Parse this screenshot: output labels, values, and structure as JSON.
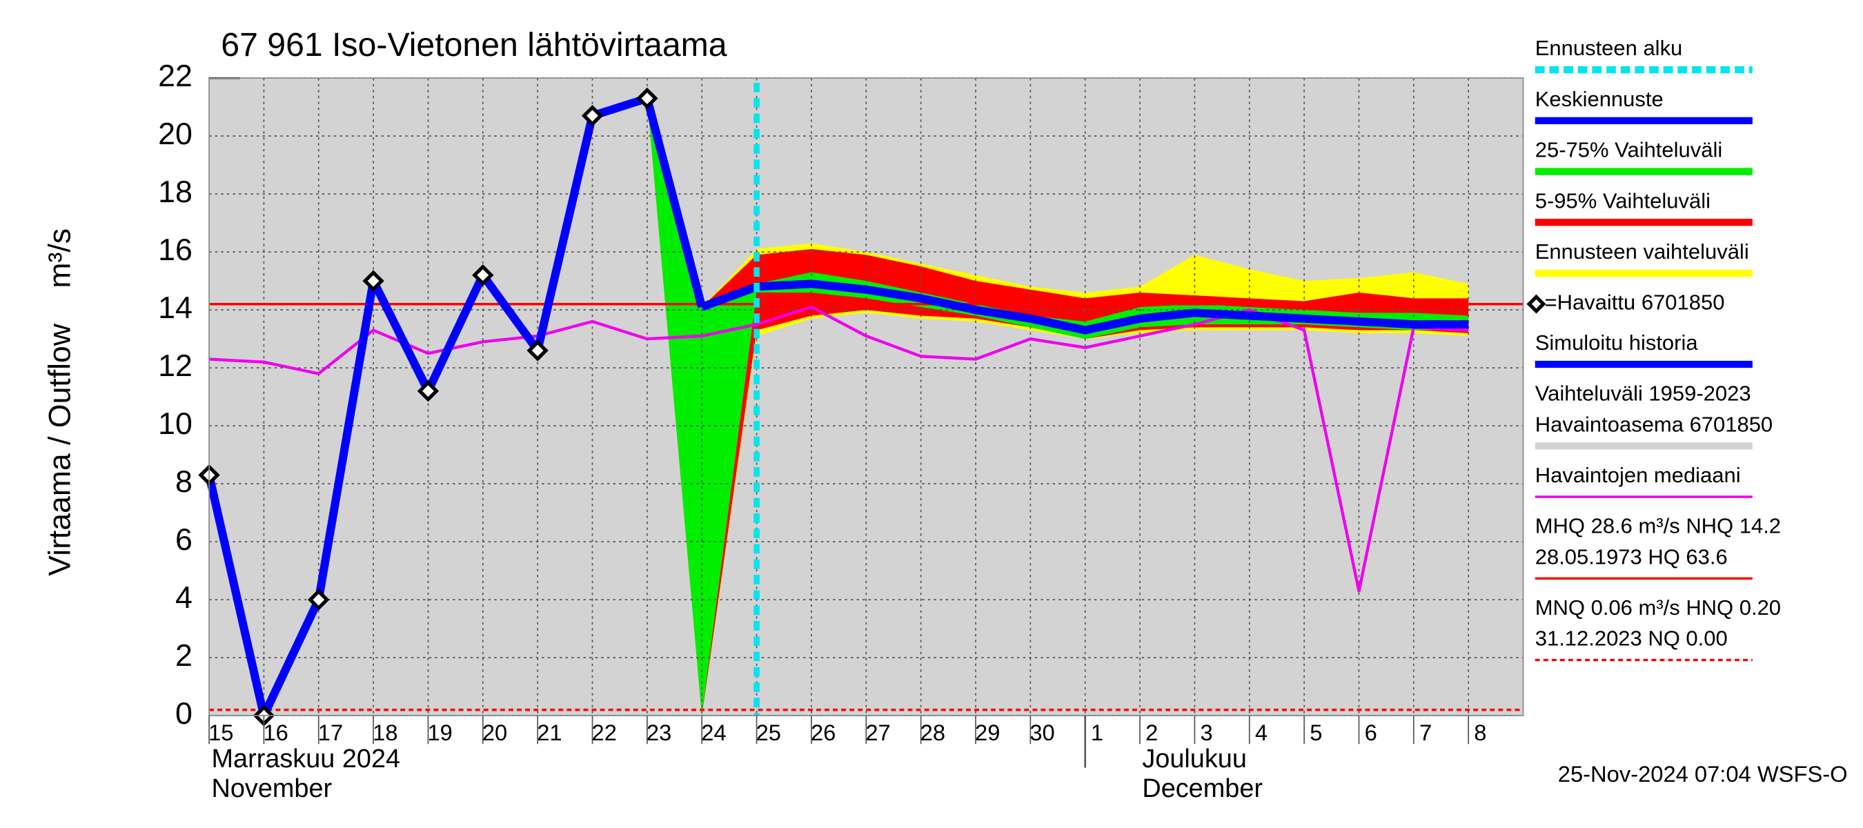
{
  "chart_data": {
    "type": "line",
    "title": "67 961 Iso-Vietonen lähtövirtaama",
    "ylabel": [
      "Virtaama / Outflow",
      "m³/s"
    ],
    "categories": [
      "15",
      "16",
      "17",
      "18",
      "19",
      "20",
      "21",
      "22",
      "23",
      "24",
      "25",
      "26",
      "27",
      "28",
      "29",
      "30",
      "1",
      "2",
      "3",
      "4",
      "5",
      "6",
      "7",
      "8"
    ],
    "month_labels": [
      {
        "index": 0,
        "lines": [
          "Marraskuu 2024",
          "November"
        ]
      },
      {
        "index": 16,
        "lines": [
          "Joulukuu",
          "December"
        ]
      }
    ],
    "ylim": [
      0,
      22
    ],
    "yticks": [
      0,
      2,
      4,
      6,
      8,
      10,
      12,
      14,
      16,
      18,
      20,
      22
    ],
    "grid": true,
    "background_color": "#d3d3d3",
    "forecast_start": 10,
    "bands": [
      {
        "key": "ennuste",
        "color": "#ffff00",
        "high": [
          null,
          null,
          null,
          null,
          null,
          null,
          null,
          null,
          21.3,
          14.1,
          16.1,
          16.3,
          16.0,
          15.6,
          15.2,
          14.8,
          14.6,
          14.8,
          15.9,
          15.4,
          15.0,
          15.1,
          15.3,
          14.9
        ],
        "low": [
          null,
          null,
          null,
          null,
          null,
          null,
          null,
          null,
          21.3,
          0,
          13.1,
          13.7,
          13.9,
          13.7,
          13.6,
          13.3,
          13.0,
          13.2,
          13.3,
          13.3,
          13.3,
          13.2,
          13.2,
          13.1
        ]
      },
      {
        "key": "5-95",
        "color": "#ff0000",
        "high": [
          null,
          null,
          null,
          null,
          null,
          null,
          null,
          null,
          21.3,
          14.1,
          15.9,
          16.1,
          15.9,
          15.5,
          15.0,
          14.7,
          14.4,
          14.6,
          14.5,
          14.4,
          14.3,
          14.6,
          14.4,
          14.4
        ],
        "low": [
          null,
          null,
          null,
          null,
          null,
          null,
          null,
          null,
          21.3,
          0,
          13.3,
          13.8,
          14.0,
          13.8,
          13.7,
          13.4,
          13.0,
          13.3,
          13.4,
          13.4,
          13.4,
          13.3,
          13.3,
          13.2
        ]
      },
      {
        "key": "25-75",
        "color": "#00ee00",
        "high": [
          null,
          null,
          null,
          null,
          null,
          null,
          null,
          null,
          21.3,
          14.1,
          14.9,
          15.3,
          15.0,
          14.6,
          14.2,
          13.8,
          13.6,
          14.1,
          14.2,
          14.1,
          14.0,
          13.9,
          13.9,
          13.8
        ],
        "low": [
          null,
          null,
          null,
          null,
          null,
          null,
          null,
          null,
          21.3,
          0,
          14.6,
          14.6,
          14.4,
          14.1,
          13.8,
          13.4,
          13.0,
          13.4,
          13.5,
          13.5,
          13.5,
          13.4,
          13.3,
          13.3
        ]
      }
    ],
    "series": [
      {
        "key": "mediaani",
        "color": "#ee00ee",
        "width": 2.5,
        "values": [
          12.3,
          12.2,
          11.8,
          13.3,
          12.5,
          12.9,
          13.1,
          13.6,
          13.0,
          13.1,
          13.5,
          14.1,
          13.1,
          12.4,
          12.3,
          13.0,
          12.7,
          13.1,
          13.5,
          14.0,
          13.3,
          4.3,
          13.4,
          13.3
        ]
      },
      {
        "key": "simuloitu",
        "color": "#0000ff",
        "width": 7,
        "values": [
          8.3,
          0,
          4,
          15,
          11.2,
          15.2,
          12.6,
          20.7,
          21.3,
          14.1,
          null,
          null,
          null,
          null,
          null,
          null,
          null,
          null,
          null,
          null,
          null,
          null,
          null,
          null
        ]
      },
      {
        "key": "keskiennuste",
        "color": "#0000ff",
        "width": 7,
        "values": [
          null,
          null,
          null,
          null,
          null,
          null,
          null,
          null,
          null,
          14.1,
          14.8,
          14.9,
          14.7,
          14.4,
          14.0,
          13.7,
          13.3,
          13.7,
          13.9,
          13.8,
          13.7,
          13.6,
          13.5,
          13.5
        ]
      },
      {
        "key": "havaittu",
        "color": "#000000",
        "marker": "diamond",
        "values": [
          8.3,
          0,
          4,
          15,
          11.2,
          15.2,
          12.6,
          20.7,
          21.3,
          null,
          null,
          null,
          null,
          null,
          null,
          null,
          null,
          null,
          null,
          null,
          null,
          null,
          null,
          null
        ]
      }
    ],
    "hlines": [
      {
        "value": 14.2,
        "color": "#ff0000",
        "dash": false
      },
      {
        "value": 0.2,
        "color": "#ff0000",
        "dash": true
      }
    ],
    "legend": [
      {
        "lines": [
          "Ennusteen alku"
        ],
        "color": "#00e5ee",
        "style": "dashed"
      },
      {
        "lines": [
          "Keskiennuste"
        ],
        "color": "#0000ff",
        "style": "solid"
      },
      {
        "lines": [
          "25-75% Vaihteluväli"
        ],
        "color": "#00ee00",
        "style": "solid"
      },
      {
        "lines": [
          "5-95% Vaihteluväli"
        ],
        "color": "#ff0000",
        "style": "solid"
      },
      {
        "lines": [
          "Ennusteen vaihteluväli"
        ],
        "color": "#ffff00",
        "style": "solid"
      },
      {
        "lines": [
          "=Havaittu 6701850"
        ],
        "color": "#000000",
        "style": "marker"
      },
      {
        "lines": [
          "Simuloitu historia"
        ],
        "color": "#0000ff",
        "style": "solid"
      },
      {
        "lines": [
          "Vaihteluväli 1959-2023",
          " Havaintoasema 6701850"
        ],
        "color": "#d3d3d3",
        "style": "solid"
      },
      {
        "lines": [
          "Havaintojen mediaani"
        ],
        "color": "#ee00ee",
        "style": "thin"
      },
      {
        "lines": [
          "MHQ 28.6 m³/s NHQ 14.2",
          "28.05.1973 HQ 63.6"
        ],
        "color": "#ff0000",
        "style": "thin"
      },
      {
        "lines": [
          "MNQ 0.06 m³/s HNQ 0.20",
          "31.12.2023 NQ 0.00"
        ],
        "color": "#ff0000",
        "style": "thindashed"
      }
    ],
    "footer": "25-Nov-2024 07:04 WSFS-O"
  }
}
